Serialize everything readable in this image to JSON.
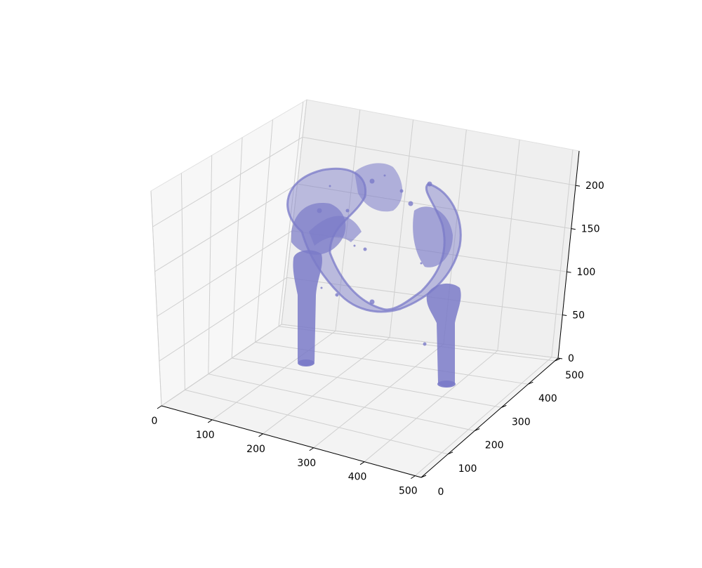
{
  "chart_data": {
    "type": "3d-surface",
    "title": "",
    "xlabel": "",
    "ylabel": "",
    "zlabel": "",
    "x_ticks": [
      "0",
      "100",
      "200",
      "300",
      "400",
      "500"
    ],
    "y_ticks": [
      "0",
      "100",
      "200",
      "300",
      "400",
      "500"
    ],
    "z_ticks": [
      "0",
      "50",
      "100",
      "150",
      "200"
    ],
    "xlim": [
      0,
      512
    ],
    "ylim": [
      0,
      512
    ],
    "zlim": [
      0,
      240
    ],
    "grid": true,
    "surface_color": "#7a7ac8",
    "pane_colors": [
      "#f2f2f2",
      "#ebebeb",
      "#e5e5e5"
    ]
  }
}
